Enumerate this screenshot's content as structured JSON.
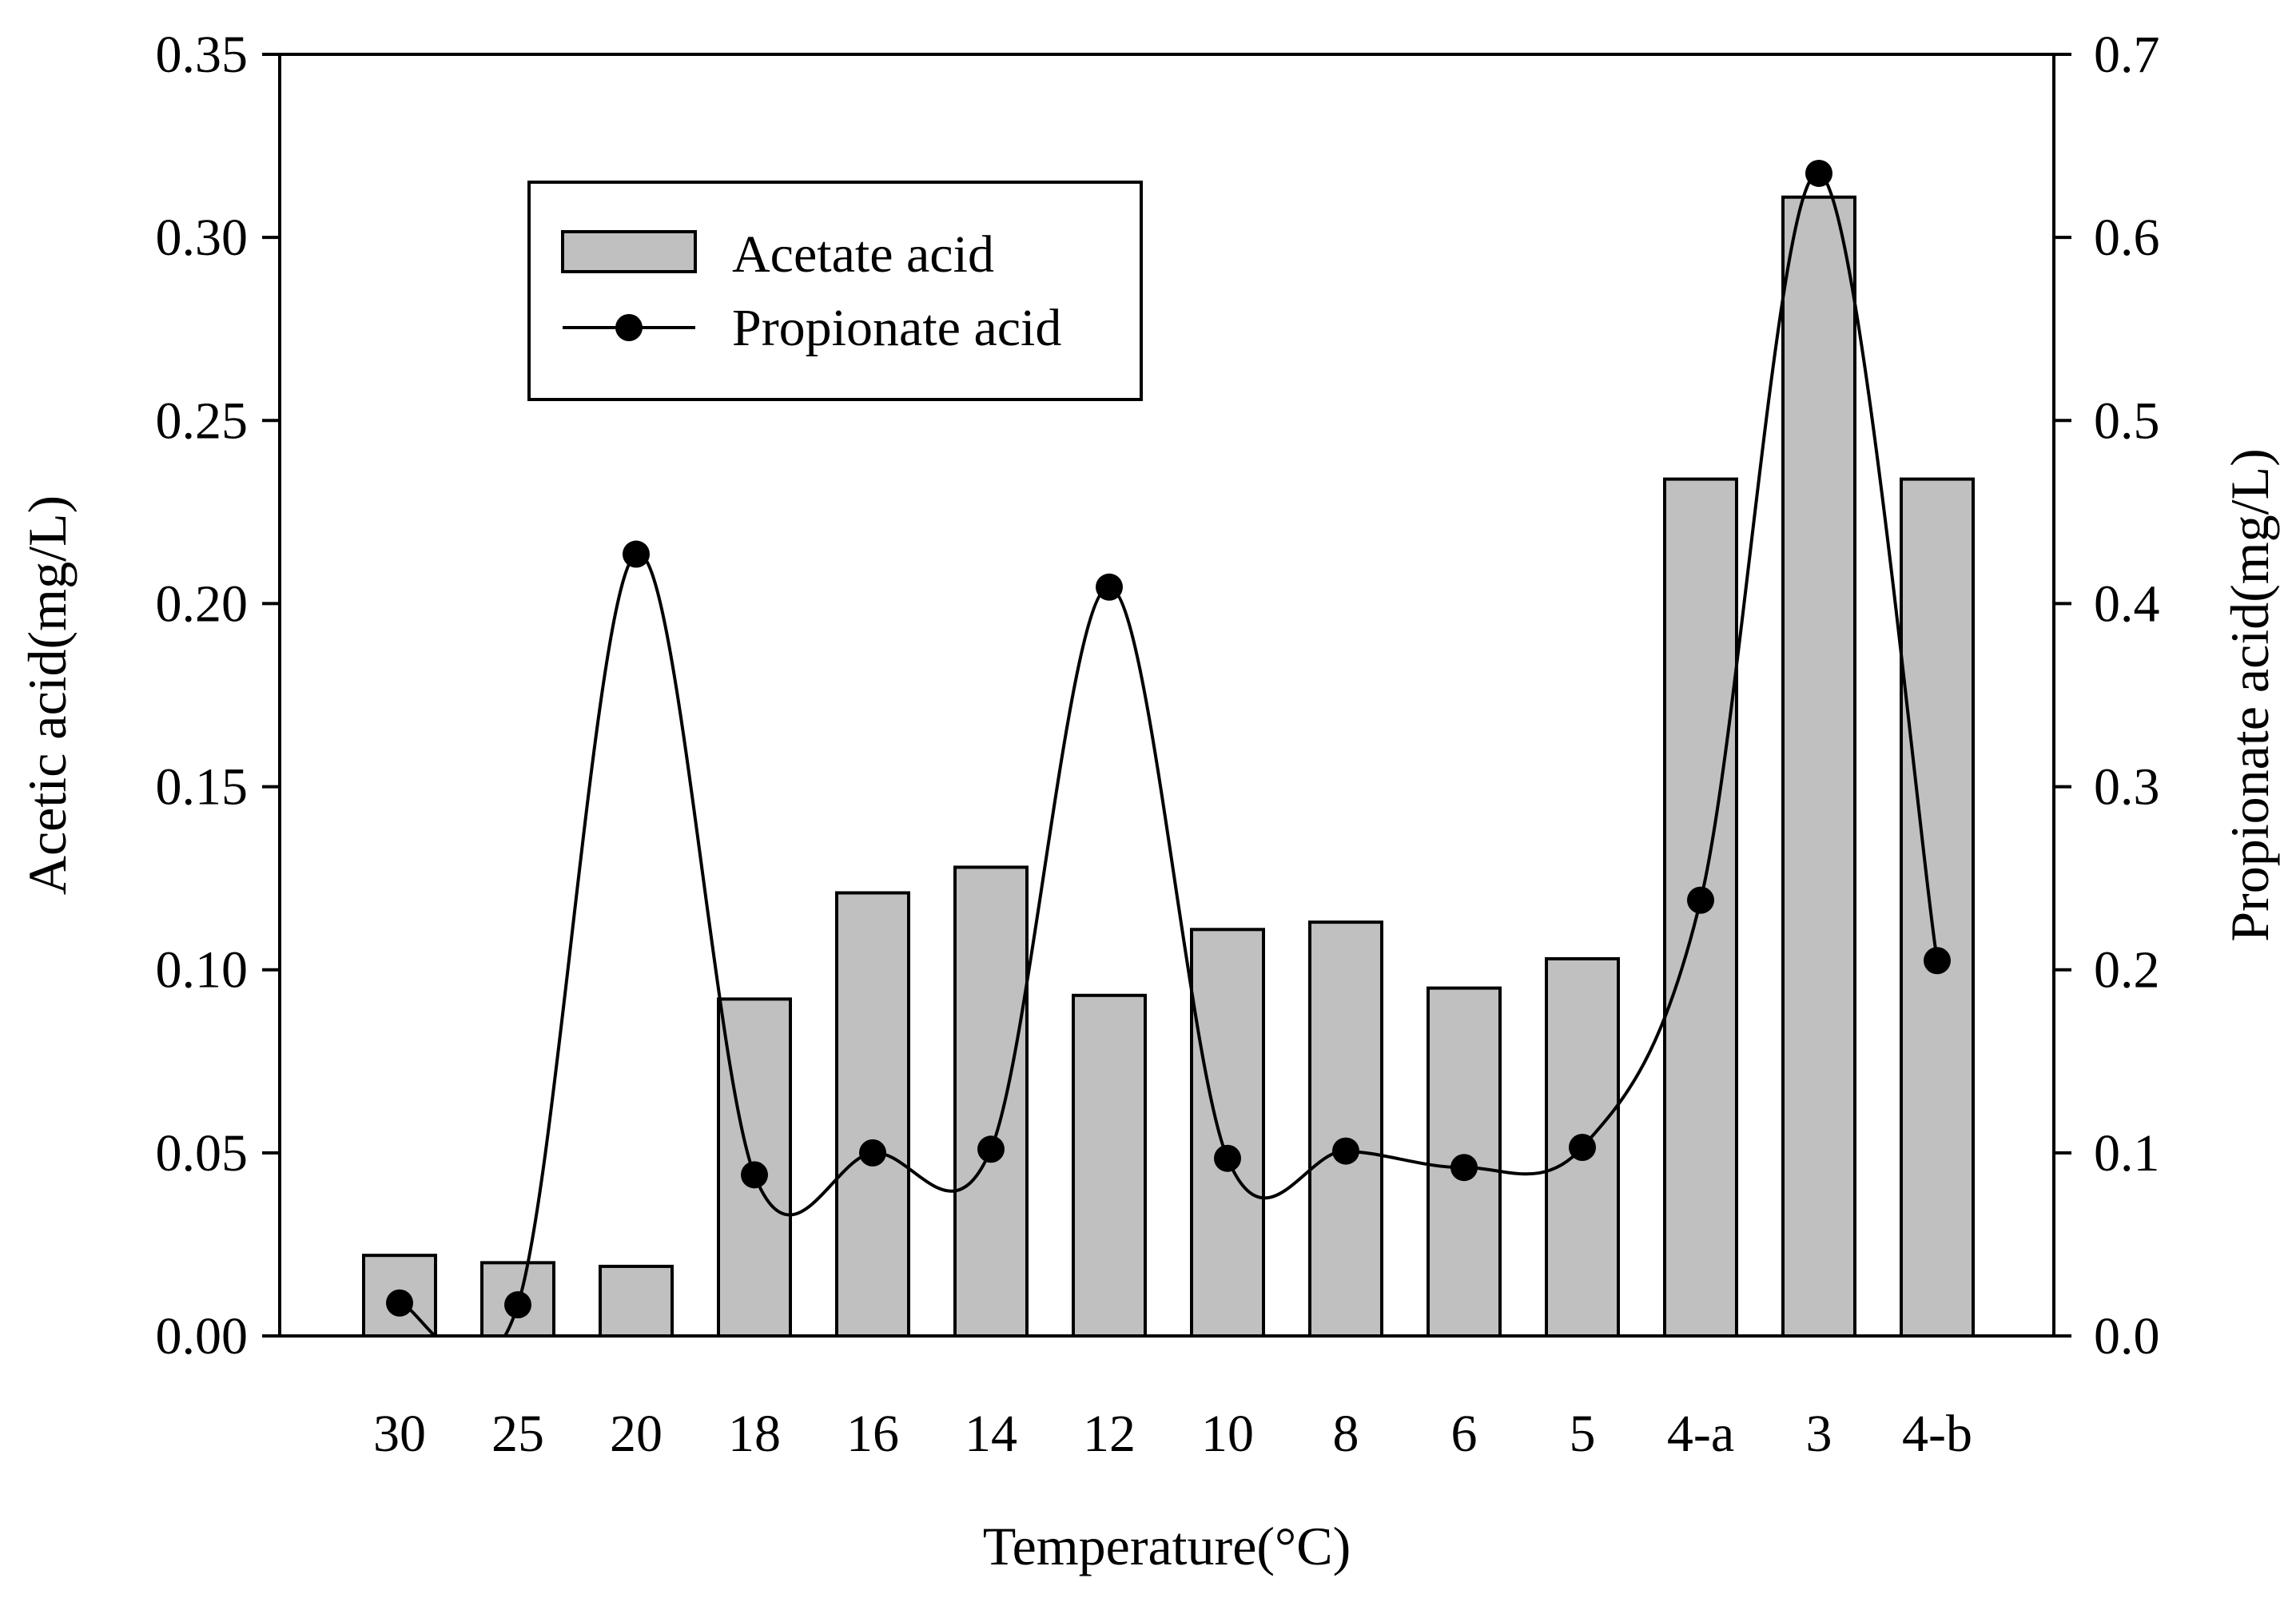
{
  "chart_data": {
    "type": "bar",
    "title": "",
    "xlabel": "Temperature(°C)",
    "ylabel": "Acetic acid(mg/L)",
    "y2label": "Propionate acid(mg/L)",
    "ylim": [
      0,
      0.35
    ],
    "y2lim": [
      0,
      0.7
    ],
    "grid": false,
    "legend_position": "top-left",
    "categories": [
      "30",
      "25",
      "20",
      "18",
      "16",
      "14",
      "12",
      "10",
      "8",
      "6",
      "5",
      "4-a",
      "3",
      "4-b"
    ],
    "yticks": [
      "0.00",
      "0.05",
      "0.10",
      "0.15",
      "0.20",
      "0.25",
      "0.30",
      "0.35"
    ],
    "y2ticks": [
      "0.0",
      "0.1",
      "0.2",
      "0.3",
      "0.4",
      "0.5",
      "0.6",
      "0.7"
    ],
    "series": [
      {
        "name": "Acetate acid",
        "type": "bar",
        "axis": "left",
        "color": "#c0c0c0",
        "values": [
          0.022,
          0.02,
          0.019,
          0.092,
          0.121,
          0.128,
          0.093,
          0.111,
          0.113,
          0.095,
          0.103,
          0.234,
          0.311,
          0.234
        ]
      },
      {
        "name": "Propionate acid",
        "type": "line",
        "axis": "right",
        "color": "#000000",
        "values": [
          0.018,
          0.017,
          0.427,
          0.088,
          0.1,
          0.102,
          0.409,
          0.097,
          0.101,
          0.092,
          0.103,
          0.238,
          0.635,
          0.205
        ]
      }
    ]
  }
}
